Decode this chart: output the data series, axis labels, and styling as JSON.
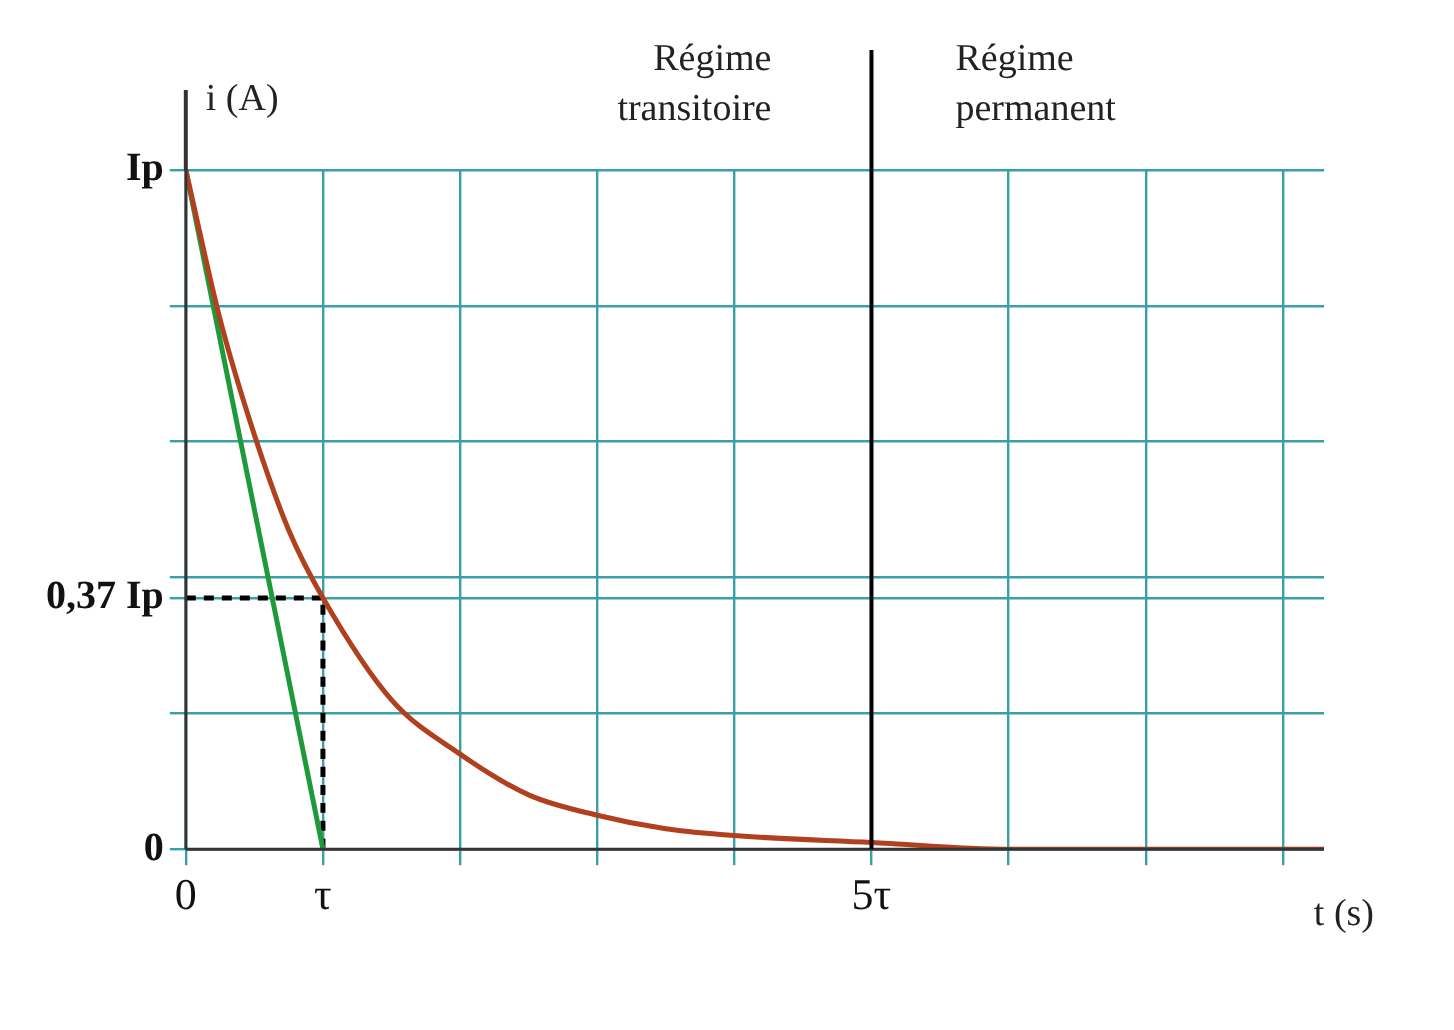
{
  "chart_data": {
    "type": "line",
    "relative": false,
    "xlabel": "t (s)",
    "ylabel": "i (A)",
    "xlim": [
      0,
      8.3
    ],
    "ylim": [
      0,
      1
    ],
    "xticks": [
      0,
      {
        "value": 1,
        "label": "τ"
      },
      {
        "value": 2,
        "label": null
      },
      {
        "value": 3,
        "label": null
      },
      {
        "value": 4,
        "label": null
      },
      {
        "value": 5,
        "label": "5τ"
      },
      {
        "value": 6,
        "label": null
      },
      {
        "value": 7,
        "label": null
      },
      {
        "value": 8,
        "label": null
      }
    ],
    "yticks": [
      0,
      {
        "value": 0.2,
        "label": null
      },
      {
        "value": 0.37,
        "label": "0,37 Ip"
      },
      {
        "value": 0.4,
        "label": null
      },
      {
        "value": 0.6,
        "label": null
      },
      {
        "value": 0.8,
        "label": null
      },
      {
        "value": 1,
        "label": "Ip"
      }
    ],
    "grid": true,
    "legend": false,
    "marker": "none",
    "series": [
      {
        "color": "#b0401e",
        "x": [
          0,
          0.25,
          0.5,
          0.75,
          1,
          1.5,
          2,
          2.5,
          3,
          3.5,
          4,
          5,
          6,
          7,
          8.3
        ],
        "values": [
          1,
          0.78,
          0.61,
          0.47,
          0.37,
          0.22,
          0.14,
          0.08,
          0.05,
          0.03,
          0.02,
          0.01,
          0,
          0,
          0
        ]
      },
      {
        "color": "#1f9a3a",
        "x": [
          0,
          1
        ],
        "values": [
          1,
          0
        ]
      },
      {
        "color": "#000000",
        "line_style": "dashed",
        "x": [
          0,
          1,
          1
        ],
        "values": [
          0.37,
          0.37,
          0
        ]
      }
    ],
    "ref_lines": [
      {
        "axis": "x",
        "value": 5,
        "label": null,
        "color": "#000000"
      }
    ],
    "annotations": [
      "Régime transitoire",
      "Régime permanent"
    ]
  }
}
